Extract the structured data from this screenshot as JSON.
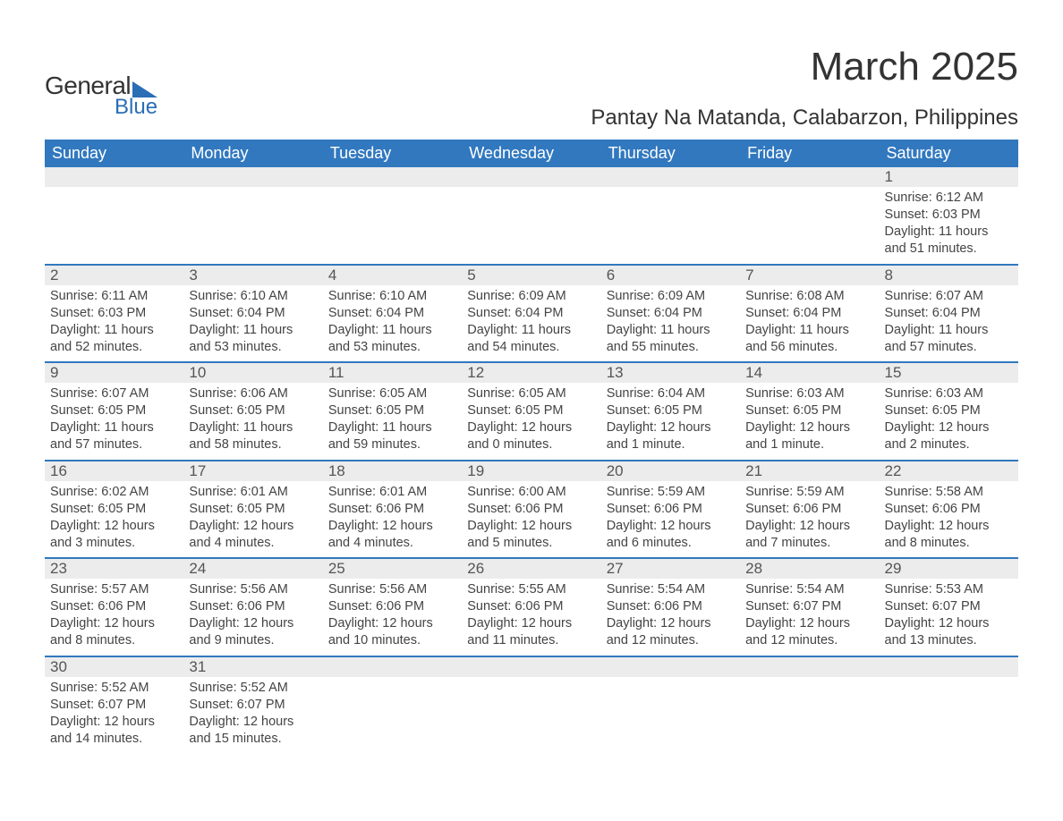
{
  "logo": {
    "general": "General",
    "blue": "Blue"
  },
  "title": "March 2025",
  "location": "Pantay Na Matanda, Calabarzon, Philippines",
  "header_bg": "#3178bf",
  "strip_bg": "#ececec",
  "border_color": "#3178bf",
  "text_color": "#444444",
  "day_headers": [
    "Sunday",
    "Monday",
    "Tuesday",
    "Wednesday",
    "Thursday",
    "Friday",
    "Saturday"
  ],
  "weeks": [
    [
      {
        "num": "",
        "sunrise": "",
        "sunset": "",
        "daylight": ""
      },
      {
        "num": "",
        "sunrise": "",
        "sunset": "",
        "daylight": ""
      },
      {
        "num": "",
        "sunrise": "",
        "sunset": "",
        "daylight": ""
      },
      {
        "num": "",
        "sunrise": "",
        "sunset": "",
        "daylight": ""
      },
      {
        "num": "",
        "sunrise": "",
        "sunset": "",
        "daylight": ""
      },
      {
        "num": "",
        "sunrise": "",
        "sunset": "",
        "daylight": ""
      },
      {
        "num": "1",
        "sunrise": "Sunrise: 6:12 AM",
        "sunset": "Sunset: 6:03 PM",
        "daylight": "Daylight: 11 hours and 51 minutes."
      }
    ],
    [
      {
        "num": "2",
        "sunrise": "Sunrise: 6:11 AM",
        "sunset": "Sunset: 6:03 PM",
        "daylight": "Daylight: 11 hours and 52 minutes."
      },
      {
        "num": "3",
        "sunrise": "Sunrise: 6:10 AM",
        "sunset": "Sunset: 6:04 PM",
        "daylight": "Daylight: 11 hours and 53 minutes."
      },
      {
        "num": "4",
        "sunrise": "Sunrise: 6:10 AM",
        "sunset": "Sunset: 6:04 PM",
        "daylight": "Daylight: 11 hours and 53 minutes."
      },
      {
        "num": "5",
        "sunrise": "Sunrise: 6:09 AM",
        "sunset": "Sunset: 6:04 PM",
        "daylight": "Daylight: 11 hours and 54 minutes."
      },
      {
        "num": "6",
        "sunrise": "Sunrise: 6:09 AM",
        "sunset": "Sunset: 6:04 PM",
        "daylight": "Daylight: 11 hours and 55 minutes."
      },
      {
        "num": "7",
        "sunrise": "Sunrise: 6:08 AM",
        "sunset": "Sunset: 6:04 PM",
        "daylight": "Daylight: 11 hours and 56 minutes."
      },
      {
        "num": "8",
        "sunrise": "Sunrise: 6:07 AM",
        "sunset": "Sunset: 6:04 PM",
        "daylight": "Daylight: 11 hours and 57 minutes."
      }
    ],
    [
      {
        "num": "9",
        "sunrise": "Sunrise: 6:07 AM",
        "sunset": "Sunset: 6:05 PM",
        "daylight": "Daylight: 11 hours and 57 minutes."
      },
      {
        "num": "10",
        "sunrise": "Sunrise: 6:06 AM",
        "sunset": "Sunset: 6:05 PM",
        "daylight": "Daylight: 11 hours and 58 minutes."
      },
      {
        "num": "11",
        "sunrise": "Sunrise: 6:05 AM",
        "sunset": "Sunset: 6:05 PM",
        "daylight": "Daylight: 11 hours and 59 minutes."
      },
      {
        "num": "12",
        "sunrise": "Sunrise: 6:05 AM",
        "sunset": "Sunset: 6:05 PM",
        "daylight": "Daylight: 12 hours and 0 minutes."
      },
      {
        "num": "13",
        "sunrise": "Sunrise: 6:04 AM",
        "sunset": "Sunset: 6:05 PM",
        "daylight": "Daylight: 12 hours and 1 minute."
      },
      {
        "num": "14",
        "sunrise": "Sunrise: 6:03 AM",
        "sunset": "Sunset: 6:05 PM",
        "daylight": "Daylight: 12 hours and 1 minute."
      },
      {
        "num": "15",
        "sunrise": "Sunrise: 6:03 AM",
        "sunset": "Sunset: 6:05 PM",
        "daylight": "Daylight: 12 hours and 2 minutes."
      }
    ],
    [
      {
        "num": "16",
        "sunrise": "Sunrise: 6:02 AM",
        "sunset": "Sunset: 6:05 PM",
        "daylight": "Daylight: 12 hours and 3 minutes."
      },
      {
        "num": "17",
        "sunrise": "Sunrise: 6:01 AM",
        "sunset": "Sunset: 6:05 PM",
        "daylight": "Daylight: 12 hours and 4 minutes."
      },
      {
        "num": "18",
        "sunrise": "Sunrise: 6:01 AM",
        "sunset": "Sunset: 6:06 PM",
        "daylight": "Daylight: 12 hours and 4 minutes."
      },
      {
        "num": "19",
        "sunrise": "Sunrise: 6:00 AM",
        "sunset": "Sunset: 6:06 PM",
        "daylight": "Daylight: 12 hours and 5 minutes."
      },
      {
        "num": "20",
        "sunrise": "Sunrise: 5:59 AM",
        "sunset": "Sunset: 6:06 PM",
        "daylight": "Daylight: 12 hours and 6 minutes."
      },
      {
        "num": "21",
        "sunrise": "Sunrise: 5:59 AM",
        "sunset": "Sunset: 6:06 PM",
        "daylight": "Daylight: 12 hours and 7 minutes."
      },
      {
        "num": "22",
        "sunrise": "Sunrise: 5:58 AM",
        "sunset": "Sunset: 6:06 PM",
        "daylight": "Daylight: 12 hours and 8 minutes."
      }
    ],
    [
      {
        "num": "23",
        "sunrise": "Sunrise: 5:57 AM",
        "sunset": "Sunset: 6:06 PM",
        "daylight": "Daylight: 12 hours and 8 minutes."
      },
      {
        "num": "24",
        "sunrise": "Sunrise: 5:56 AM",
        "sunset": "Sunset: 6:06 PM",
        "daylight": "Daylight: 12 hours and 9 minutes."
      },
      {
        "num": "25",
        "sunrise": "Sunrise: 5:56 AM",
        "sunset": "Sunset: 6:06 PM",
        "daylight": "Daylight: 12 hours and 10 minutes."
      },
      {
        "num": "26",
        "sunrise": "Sunrise: 5:55 AM",
        "sunset": "Sunset: 6:06 PM",
        "daylight": "Daylight: 12 hours and 11 minutes."
      },
      {
        "num": "27",
        "sunrise": "Sunrise: 5:54 AM",
        "sunset": "Sunset: 6:06 PM",
        "daylight": "Daylight: 12 hours and 12 minutes."
      },
      {
        "num": "28",
        "sunrise": "Sunrise: 5:54 AM",
        "sunset": "Sunset: 6:07 PM",
        "daylight": "Daylight: 12 hours and 12 minutes."
      },
      {
        "num": "29",
        "sunrise": "Sunrise: 5:53 AM",
        "sunset": "Sunset: 6:07 PM",
        "daylight": "Daylight: 12 hours and 13 minutes."
      }
    ],
    [
      {
        "num": "30",
        "sunrise": "Sunrise: 5:52 AM",
        "sunset": "Sunset: 6:07 PM",
        "daylight": "Daylight: 12 hours and 14 minutes."
      },
      {
        "num": "31",
        "sunrise": "Sunrise: 5:52 AM",
        "sunset": "Sunset: 6:07 PM",
        "daylight": "Daylight: 12 hours and 15 minutes."
      },
      {
        "num": "",
        "sunrise": "",
        "sunset": "",
        "daylight": ""
      },
      {
        "num": "",
        "sunrise": "",
        "sunset": "",
        "daylight": ""
      },
      {
        "num": "",
        "sunrise": "",
        "sunset": "",
        "daylight": ""
      },
      {
        "num": "",
        "sunrise": "",
        "sunset": "",
        "daylight": ""
      },
      {
        "num": "",
        "sunrise": "",
        "sunset": "",
        "daylight": ""
      }
    ]
  ]
}
